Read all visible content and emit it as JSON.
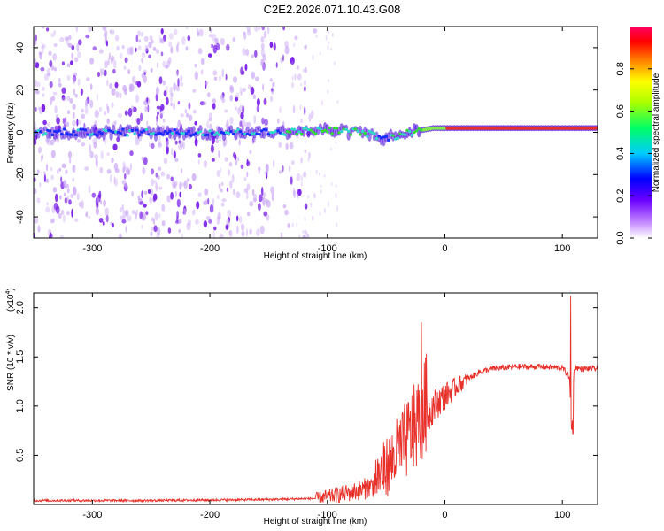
{
  "title": "C2E2.2026.071.10.43.G08",
  "colors": {
    "snr_line": "#e8302a",
    "axis": "#000000",
    "ridge_peak": "#e8302a",
    "ridge_mid": "#33dd33",
    "ridge_low": "#2fd6c9",
    "noise": "#7a22e8",
    "noise_faint": "#c9a6f5"
  },
  "chart_data": [
    {
      "type": "heatmap",
      "name": "spectrogram",
      "xlabel": "Height of straight line (km)",
      "ylabel": "Frequency (Hz)",
      "xlim": [
        -350,
        130
      ],
      "ylim": [
        -50,
        50
      ],
      "xticks": [
        -300,
        -200,
        -100,
        0,
        100
      ],
      "yticks": [
        -40,
        -20,
        0,
        20,
        40
      ],
      "xtick_labels": [
        "-300",
        "-200",
        "-100",
        "0",
        "100"
      ],
      "ytick_labels": [
        "-40",
        "-20",
        "0",
        "20",
        "40"
      ],
      "ridge": {
        "description_points_x": [
          -350,
          -250,
          -150,
          -100,
          -70,
          -50,
          -30,
          -10,
          0,
          50,
          100,
          130
        ],
        "center_hz": [
          0,
          0,
          0,
          1,
          0,
          -3,
          0,
          2,
          2,
          2,
          2,
          2
        ],
        "amplitude": [
          0.25,
          0.3,
          0.35,
          0.45,
          0.4,
          0.35,
          0.55,
          0.75,
          0.8,
          0.9,
          0.85,
          0.85
        ]
      },
      "noise_region_xlim": [
        -350,
        -130
      ],
      "colorbar": {
        "label": "Normalized spectral amplitude",
        "range": [
          0,
          1
        ],
        "ticks": [
          0.0,
          0.2,
          0.4,
          0.6,
          0.8
        ],
        "tick_labels": [
          "0.0",
          "0.2",
          "0.4",
          "0.6",
          "0.8"
        ],
        "colors": [
          "#ffffff",
          "#a020f0",
          "#0000ff",
          "#00ffff",
          "#00ff00",
          "#ffff00",
          "#ff8000",
          "#ff0000",
          "#ff00ff"
        ]
      }
    },
    {
      "type": "line",
      "name": "snr",
      "xlabel": "Height of straight line (km)",
      "ylabel": "SNR (10 * v/v)",
      "exponent_label": "(x10",
      "exponent_power": "4",
      "exponent_close": ")",
      "xlim": [
        -350,
        130
      ],
      "ylim": [
        0,
        2.15
      ],
      "xticks": [
        -300,
        -200,
        -100,
        0,
        100
      ],
      "yticks": [
        0.5,
        1.0,
        1.5,
        2.0
      ],
      "xtick_labels": [
        "-300",
        "-200",
        "-100",
        "0",
        "100"
      ],
      "ytick_labels": [
        "0.5",
        "1.0",
        "1.5",
        "2.0"
      ],
      "series": [
        {
          "name": "SNR",
          "x": [
            -350,
            -250,
            -150,
            -110,
            -90,
            -70,
            -55,
            -45,
            -35,
            -25,
            -18,
            -15,
            -10,
            0,
            10,
            20,
            30,
            40,
            60,
            80,
            100,
            106,
            108,
            110,
            115,
            130
          ],
          "y": [
            0.04,
            0.04,
            0.05,
            0.06,
            0.1,
            0.15,
            0.22,
            0.35,
            0.5,
            0.65,
            0.8,
            0.9,
            1.0,
            1.1,
            1.2,
            1.28,
            1.35,
            1.38,
            1.4,
            1.4,
            1.39,
            1.3,
            0.7,
            1.4,
            1.38,
            1.38
          ]
        }
      ],
      "spikes": [
        {
          "x": -20,
          "y": 1.85
        },
        {
          "x": 107,
          "y": 2.12
        },
        {
          "x": 109,
          "y": 0.72
        }
      ]
    }
  ]
}
